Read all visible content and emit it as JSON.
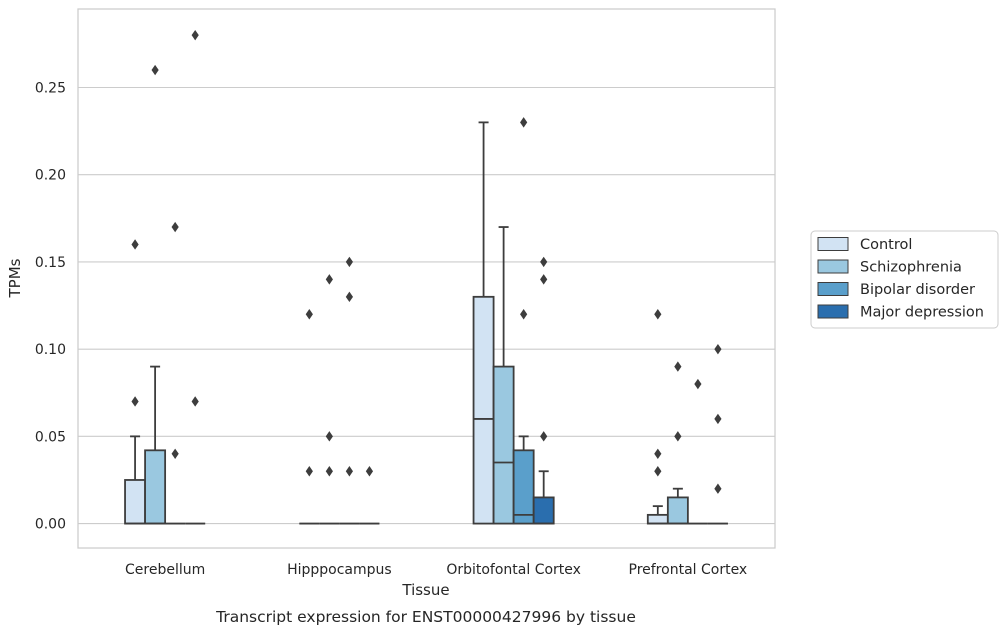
{
  "chart_data": {
    "type": "boxplot",
    "caption": "Transcript expression for ENST00000427996 by tissue",
    "xlabel": "Tissue",
    "ylabel": "TPMs",
    "ylim": [
      -0.014,
      0.295
    ],
    "yticks": [
      "0.00",
      "0.05",
      "0.10",
      "0.15",
      "0.20",
      "0.25"
    ],
    "categories": [
      "Cerebellum",
      "Hipppocampus",
      "Orbitofontal Cortex",
      "Prefrontal Cortex"
    ],
    "grid": "horizontal",
    "legend_position": "right",
    "series": [
      {
        "name": "Control",
        "color": "#d2e3f3",
        "boxes": [
          {
            "q1": 0.0,
            "median": 0.0,
            "q3": 0.025,
            "whisker_low": 0.0,
            "whisker_high": 0.05,
            "outliers": [
              0.07,
              0.16
            ]
          },
          {
            "q1": 0.0,
            "median": 0.0,
            "q3": 0.0,
            "whisker_low": 0.0,
            "whisker_high": 0.0,
            "outliers": [
              0.03,
              0.12
            ]
          },
          {
            "q1": 0.0,
            "median": 0.06,
            "q3": 0.13,
            "whisker_low": 0.0,
            "whisker_high": 0.23,
            "outliers": []
          },
          {
            "q1": 0.0,
            "median": 0.0,
            "q3": 0.005,
            "whisker_low": 0.0,
            "whisker_high": 0.01,
            "outliers": [
              0.03,
              0.04,
              0.12
            ]
          }
        ]
      },
      {
        "name": "Schizophrenia",
        "color": "#9ac8e0",
        "boxes": [
          {
            "q1": 0.0,
            "median": 0.0,
            "q3": 0.042,
            "whisker_low": 0.0,
            "whisker_high": 0.09,
            "outliers": [
              0.26
            ]
          },
          {
            "q1": 0.0,
            "median": 0.0,
            "q3": 0.0,
            "whisker_low": 0.0,
            "whisker_high": 0.0,
            "outliers": [
              0.03,
              0.05,
              0.14
            ]
          },
          {
            "q1": 0.0,
            "median": 0.035,
            "q3": 0.09,
            "whisker_low": 0.0,
            "whisker_high": 0.17,
            "outliers": []
          },
          {
            "q1": 0.0,
            "median": 0.0,
            "q3": 0.015,
            "whisker_low": 0.0,
            "whisker_high": 0.02,
            "outliers": [
              0.05,
              0.09
            ]
          }
        ]
      },
      {
        "name": "Bipolar disorder",
        "color": "#5a9fcb",
        "boxes": [
          {
            "q1": 0.0,
            "median": 0.0,
            "q3": 0.0,
            "whisker_low": 0.0,
            "whisker_high": 0.0,
            "outliers": [
              0.04,
              0.17
            ]
          },
          {
            "q1": 0.0,
            "median": 0.0,
            "q3": 0.0,
            "whisker_low": 0.0,
            "whisker_high": 0.0,
            "outliers": [
              0.03,
              0.13,
              0.15
            ]
          },
          {
            "q1": 0.0,
            "median": 0.005,
            "q3": 0.042,
            "whisker_low": 0.0,
            "whisker_high": 0.05,
            "outliers": [
              0.12,
              0.23
            ]
          },
          {
            "q1": 0.0,
            "median": 0.0,
            "q3": 0.0,
            "whisker_low": 0.0,
            "whisker_high": 0.0,
            "outliers": [
              0.08
            ]
          }
        ]
      },
      {
        "name": "Major depression",
        "color": "#2a6eae",
        "boxes": [
          {
            "q1": 0.0,
            "median": 0.0,
            "q3": 0.0,
            "whisker_low": 0.0,
            "whisker_high": 0.0,
            "outliers": [
              0.07,
              0.28
            ]
          },
          {
            "q1": 0.0,
            "median": 0.0,
            "q3": 0.0,
            "whisker_low": 0.0,
            "whisker_high": 0.0,
            "outliers": [
              0.03
            ]
          },
          {
            "q1": 0.0,
            "median": 0.0,
            "q3": 0.015,
            "whisker_low": 0.0,
            "whisker_high": 0.03,
            "outliers": [
              0.05,
              0.14,
              0.15
            ]
          },
          {
            "q1": 0.0,
            "median": 0.0,
            "q3": 0.0,
            "whisker_low": 0.0,
            "whisker_high": 0.0,
            "outliers": [
              0.02,
              0.06,
              0.1
            ]
          }
        ]
      }
    ]
  }
}
